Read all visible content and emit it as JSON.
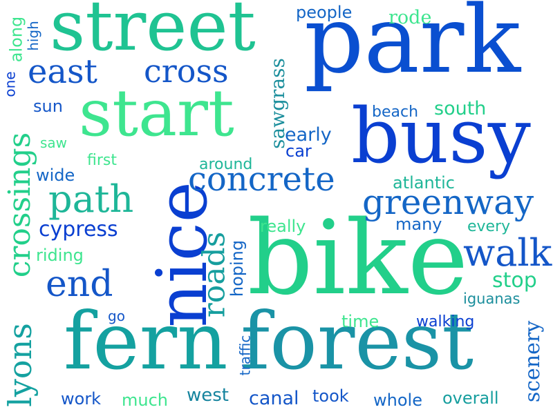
{
  "palette": {
    "deep_blue": "#0a3fd1",
    "blue": "#1456c8",
    "teal_blue": "#16849e",
    "teal": "#14a58c",
    "green": "#22cf8a",
    "mint": "#3ee58f"
  },
  "words": [
    {
      "id": "park",
      "text": "park"
    },
    {
      "id": "bike",
      "text": "bike"
    },
    {
      "id": "street",
      "text": "street"
    },
    {
      "id": "start",
      "text": "start"
    },
    {
      "id": "busy",
      "text": "busy"
    },
    {
      "id": "nice",
      "text": "nice"
    },
    {
      "id": "fern",
      "text": "fern"
    },
    {
      "id": "forest",
      "text": "forest"
    },
    {
      "id": "concrete",
      "text": "concrete"
    },
    {
      "id": "greenway",
      "text": "greenway"
    },
    {
      "id": "walk",
      "text": "walk"
    },
    {
      "id": "path",
      "text": "path"
    },
    {
      "id": "east",
      "text": "east"
    },
    {
      "id": "cross",
      "text": "cross"
    },
    {
      "id": "end",
      "text": "end"
    },
    {
      "id": "crossings",
      "text": "crossings"
    },
    {
      "id": "lyons",
      "text": "lyons"
    },
    {
      "id": "roads",
      "text": "roads"
    },
    {
      "id": "cypress",
      "text": "cypress"
    },
    {
      "id": "sawgrass",
      "text": "sawgrass"
    },
    {
      "id": "scenery",
      "text": "scenery"
    },
    {
      "id": "stop",
      "text": "stop"
    },
    {
      "id": "people",
      "text": "people"
    },
    {
      "id": "rode",
      "text": "rode"
    },
    {
      "id": "south",
      "text": "south"
    },
    {
      "id": "beach",
      "text": "beach"
    },
    {
      "id": "early",
      "text": "early"
    },
    {
      "id": "car",
      "text": "car"
    },
    {
      "id": "atlantic",
      "text": "atlantic"
    },
    {
      "id": "many",
      "text": "many"
    },
    {
      "id": "every",
      "text": "every"
    },
    {
      "id": "really",
      "text": "really"
    },
    {
      "id": "hoping",
      "text": "hoping"
    },
    {
      "id": "iguanas",
      "text": "iguanas"
    },
    {
      "id": "time",
      "text": "time"
    },
    {
      "id": "walking",
      "text": "walking"
    },
    {
      "id": "traffic",
      "text": "traffic"
    },
    {
      "id": "canal",
      "text": "canal"
    },
    {
      "id": "took",
      "text": "took"
    },
    {
      "id": "whole",
      "text": "whole"
    },
    {
      "id": "overall",
      "text": "overall"
    },
    {
      "id": "work",
      "text": "work"
    },
    {
      "id": "much",
      "text": "much"
    },
    {
      "id": "west",
      "text": "west"
    },
    {
      "id": "go",
      "text": "go"
    },
    {
      "id": "riding",
      "text": "riding"
    },
    {
      "id": "wide",
      "text": "wide"
    },
    {
      "id": "first",
      "text": "first"
    },
    {
      "id": "around",
      "text": "around"
    },
    {
      "id": "saw",
      "text": "saw"
    },
    {
      "id": "sun",
      "text": "sun"
    },
    {
      "id": "along",
      "text": "along"
    },
    {
      "id": "high",
      "text": "high"
    },
    {
      "id": "one",
      "text": "one"
    }
  ]
}
